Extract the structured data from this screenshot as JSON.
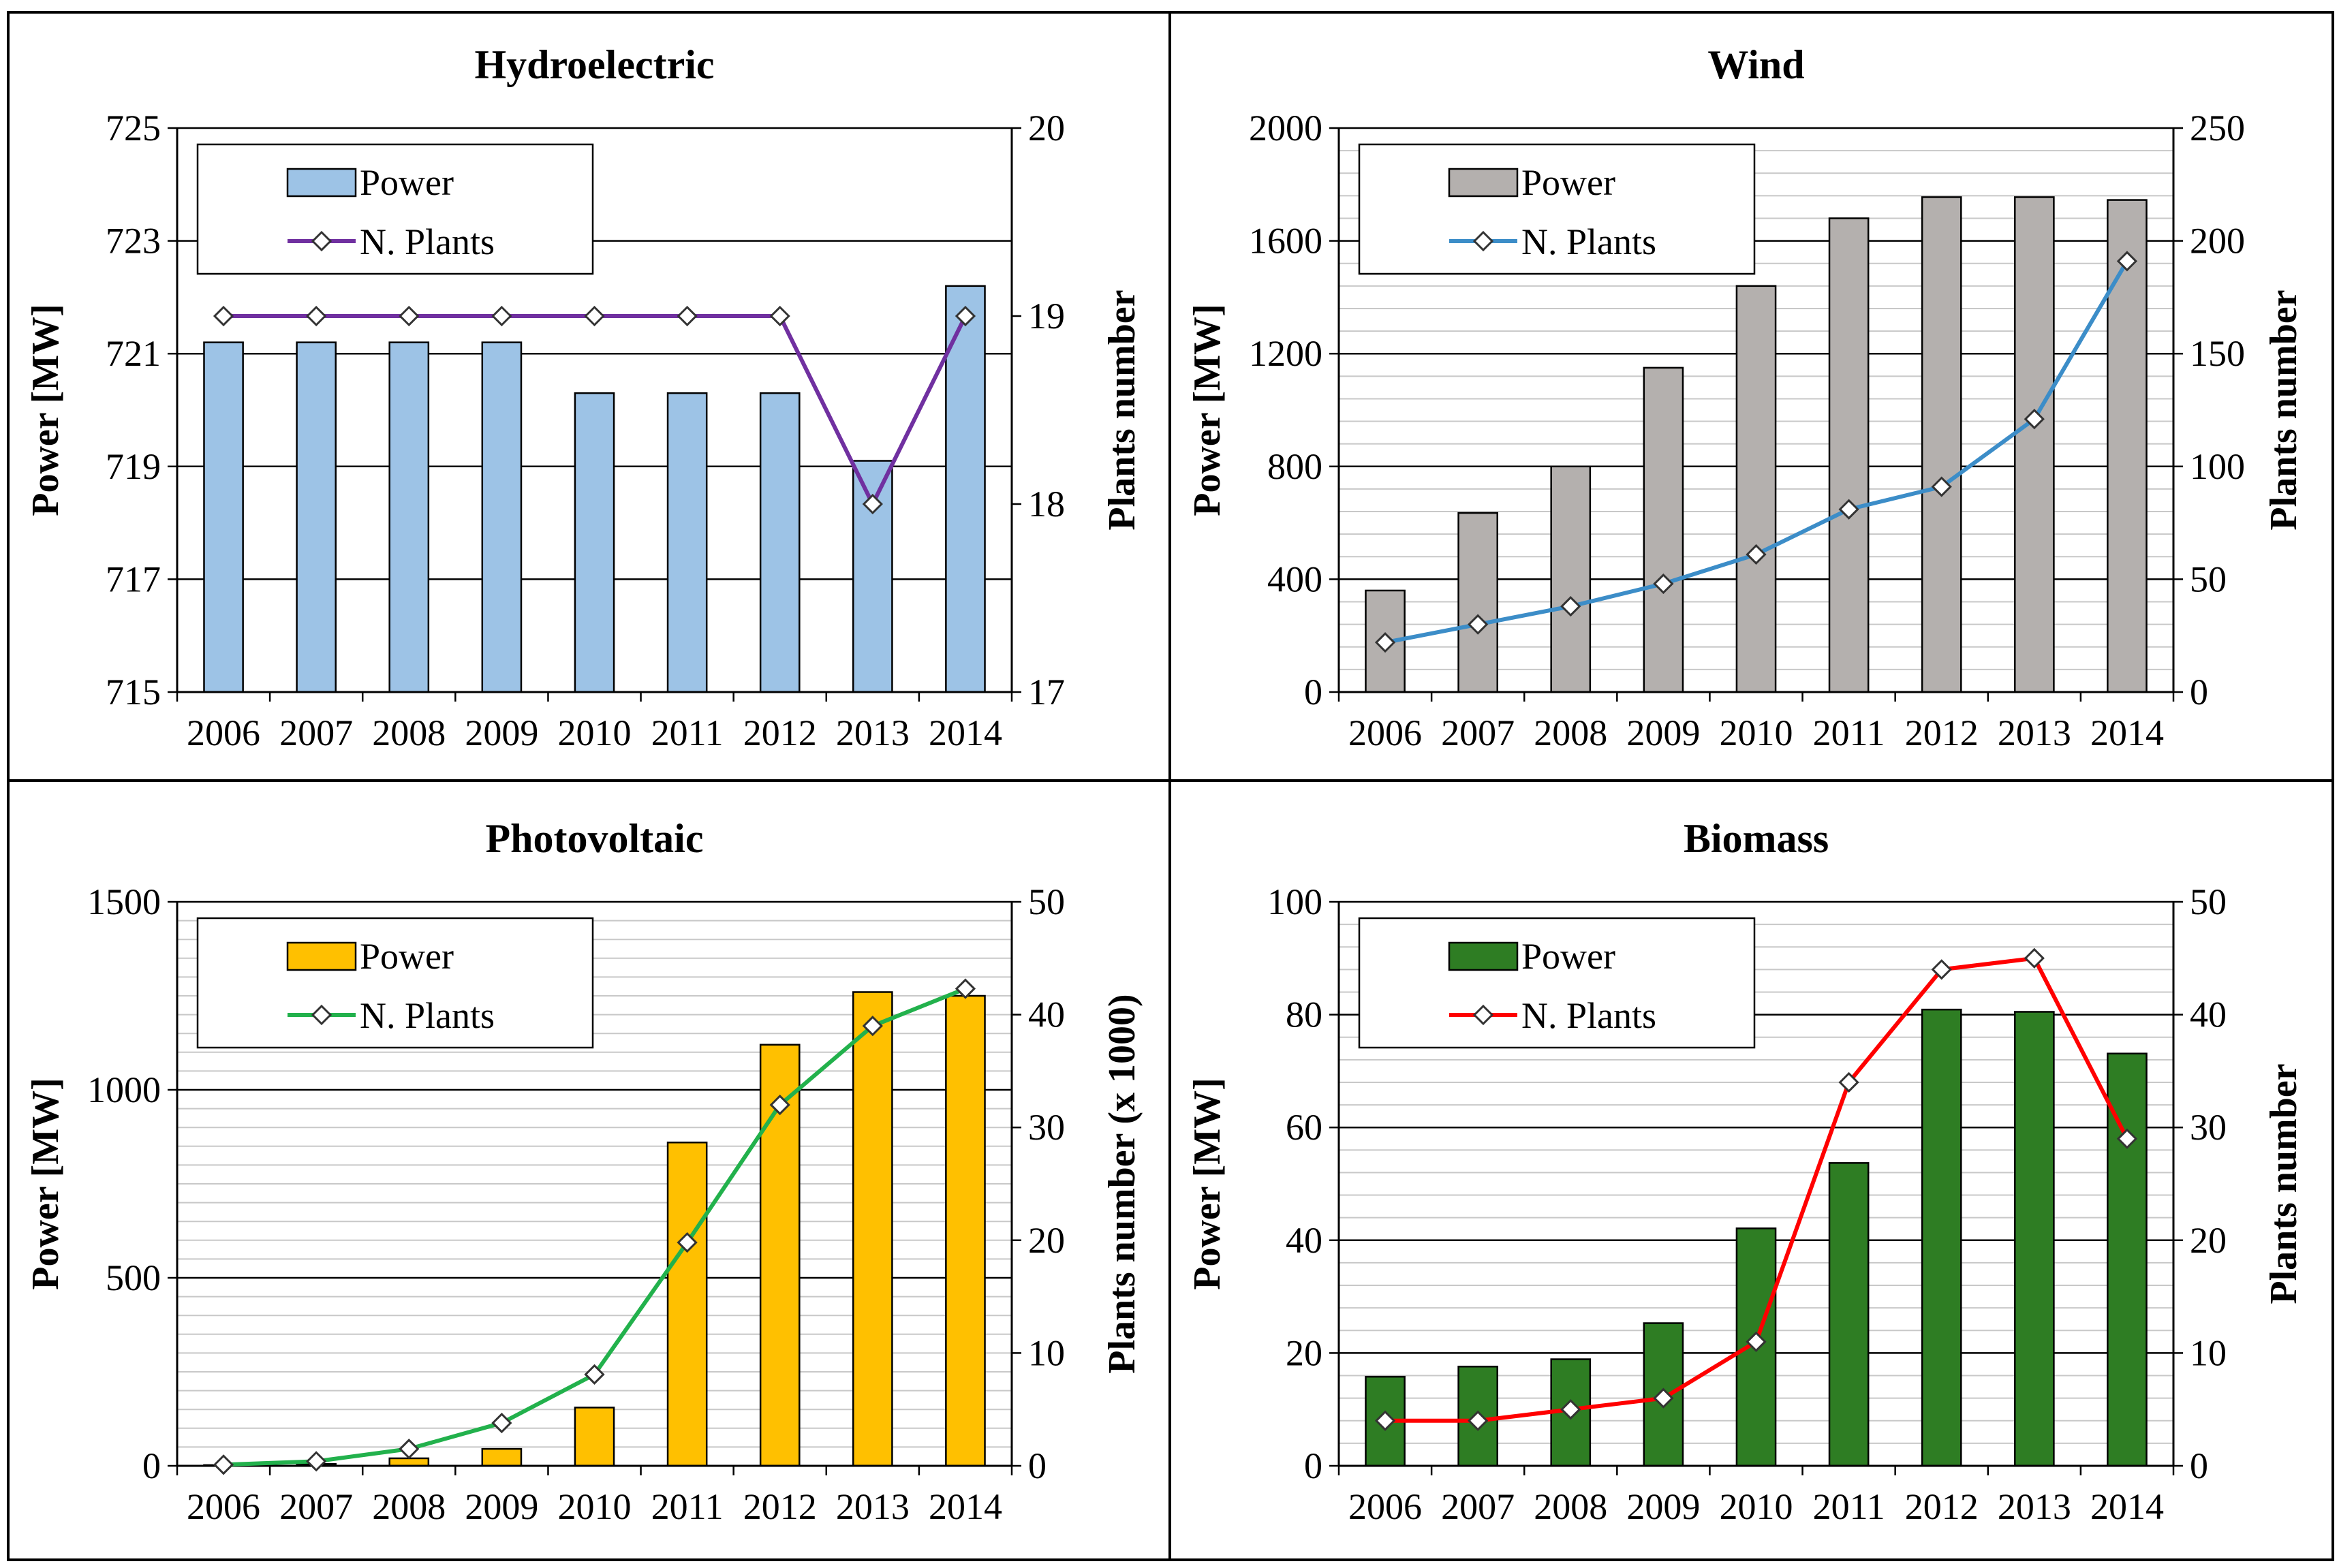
{
  "figure": {
    "panel_count": 4
  },
  "chart_data": [
    {
      "type": "bar",
      "title": "Hydroelectric",
      "categories": [
        "2006",
        "2007",
        "2008",
        "2009",
        "2010",
        "2011",
        "2012",
        "2013",
        "2014"
      ],
      "series": [
        {
          "name": "Power",
          "kind": "bar",
          "axis": "left",
          "color": "#9DC3E6",
          "values": [
            721.2,
            721.2,
            721.2,
            721.2,
            720.3,
            720.3,
            720.3,
            719.1,
            722.2
          ]
        },
        {
          "name": "N. Plants",
          "kind": "line",
          "axis": "right",
          "color": "#7030A0",
          "values": [
            19,
            19,
            19,
            19,
            19,
            19,
            19,
            18,
            19
          ]
        }
      ],
      "ylabel": "Power [MW]",
      "y2label": "Plants number",
      "ylim": [
        715,
        725
      ],
      "yticks": [
        715,
        717,
        719,
        721,
        723,
        725
      ],
      "y2lim": [
        17,
        20
      ],
      "y2ticks": [
        17,
        18,
        19,
        20
      ],
      "minor_grid_step": null,
      "legend": "top-left"
    },
    {
      "type": "bar",
      "title": "Wind",
      "categories": [
        "2006",
        "2007",
        "2008",
        "2009",
        "2010",
        "2011",
        "2012",
        "2013",
        "2014"
      ],
      "series": [
        {
          "name": "Power",
          "kind": "bar",
          "axis": "left",
          "color": "#B4B0AE",
          "values": [
            360,
            635,
            800,
            1150,
            1440,
            1680,
            1755,
            1755,
            1745
          ]
        },
        {
          "name": "N. Plants",
          "kind": "line",
          "axis": "right",
          "color": "#3C8DC8",
          "values": [
            22,
            30,
            38,
            48,
            61,
            81,
            91,
            121,
            191
          ]
        }
      ],
      "ylabel": "Power [MW]",
      "y2label": "Plants number",
      "ylim": [
        0,
        2000
      ],
      "yticks": [
        0,
        400,
        800,
        1200,
        1600,
        2000
      ],
      "y2lim": [
        0,
        250
      ],
      "y2ticks": [
        0,
        50,
        100,
        150,
        200,
        250
      ],
      "minor_grid_step": 80,
      "legend": "top-left"
    },
    {
      "type": "bar",
      "title": "Photovoltaic",
      "categories": [
        "2006",
        "2007",
        "2008",
        "2009",
        "2010",
        "2011",
        "2012",
        "2013",
        "2014"
      ],
      "series": [
        {
          "name": "Power",
          "kind": "bar",
          "axis": "left",
          "color": "#FFC000",
          "values": [
            2,
            5,
            20,
            45,
            155,
            860,
            1120,
            1260,
            1250
          ]
        },
        {
          "name": "N. Plants",
          "kind": "line",
          "axis": "right",
          "color": "#22B14C",
          "values": [
            0.1,
            0.4,
            1.5,
            3.8,
            8.1,
            19.8,
            32,
            39,
            42.3
          ]
        }
      ],
      "ylabel": "Power [MW]",
      "y2label": "Plants number  (x 1000)",
      "ylim": [
        0,
        1500
      ],
      "yticks": [
        0,
        500,
        1000,
        1500
      ],
      "y2lim": [
        0,
        50
      ],
      "y2ticks": [
        0,
        10,
        20,
        30,
        40,
        50
      ],
      "minor_grid_step": 50,
      "legend": "top-left"
    },
    {
      "type": "bar",
      "title": "Biomass",
      "categories": [
        "2006",
        "2007",
        "2008",
        "2009",
        "2010",
        "2011",
        "2012",
        "2013",
        "2014"
      ],
      "series": [
        {
          "name": "Power",
          "kind": "bar",
          "axis": "left",
          "color": "#2E7D23",
          "values": [
            15.8,
            17.6,
            18.9,
            25.3,
            42.1,
            53.7,
            80.9,
            80.5,
            73.1
          ]
        },
        {
          "name": "N. Plants",
          "kind": "line",
          "axis": "right",
          "color": "#FF0000",
          "values": [
            4,
            4,
            5,
            6,
            11,
            34,
            44,
            45,
            29
          ]
        }
      ],
      "ylabel": "Power [MW]",
      "y2label": "Plants number",
      "ylim": [
        0,
        100
      ],
      "yticks": [
        0,
        20,
        40,
        60,
        80,
        100
      ],
      "y2lim": [
        0,
        50
      ],
      "y2ticks": [
        0,
        10,
        20,
        30,
        40,
        50
      ],
      "minor_grid_step": 4,
      "legend": "top-left"
    }
  ]
}
